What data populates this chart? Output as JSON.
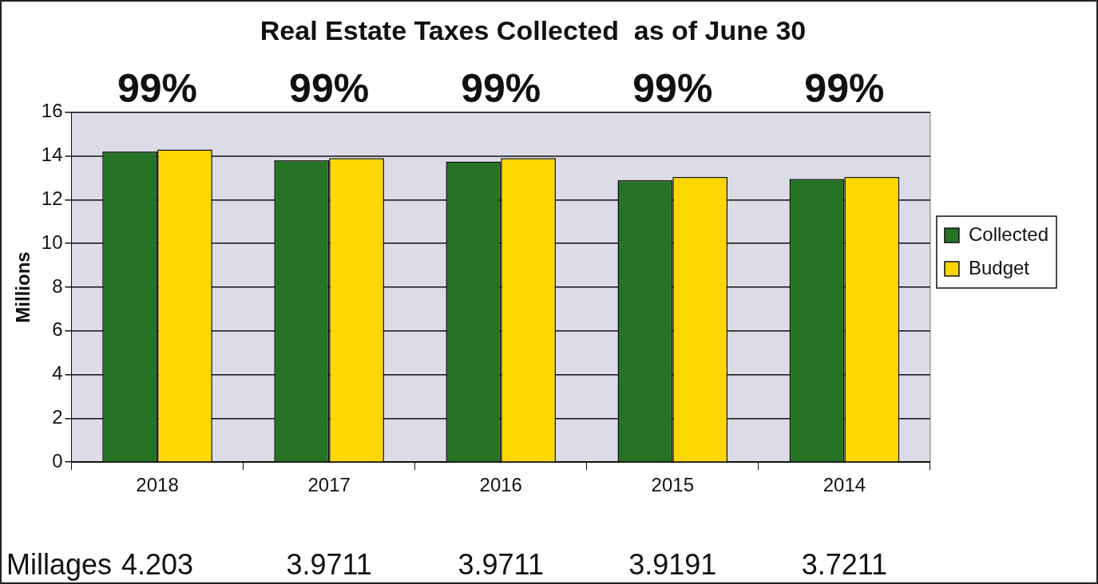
{
  "chart_data": {
    "type": "bar",
    "title": "Real Estate Taxes Collected  as of June 30",
    "ylabel": "Millions",
    "categories": [
      "2018",
      "2017",
      "2016",
      "2015",
      "2014"
    ],
    "series": [
      {
        "name": "Collected",
        "color": "#267326",
        "values": [
          14.2,
          13.8,
          13.75,
          12.9,
          12.95
        ]
      },
      {
        "name": "Budget",
        "color": "#ffd700",
        "values": [
          14.3,
          13.9,
          13.9,
          13.05,
          13.05
        ]
      }
    ],
    "ylim": [
      0,
      16
    ],
    "yticks": [
      0,
      2,
      4,
      6,
      8,
      10,
      12,
      14,
      16
    ],
    "grid": "y",
    "legend": "right",
    "annotations": [
      "99%",
      "99%",
      "99%",
      "99%",
      "99%",
      "Millages",
      "4.203",
      "3.9711",
      "3.9711",
      "3.9191",
      "3.7211"
    ]
  }
}
